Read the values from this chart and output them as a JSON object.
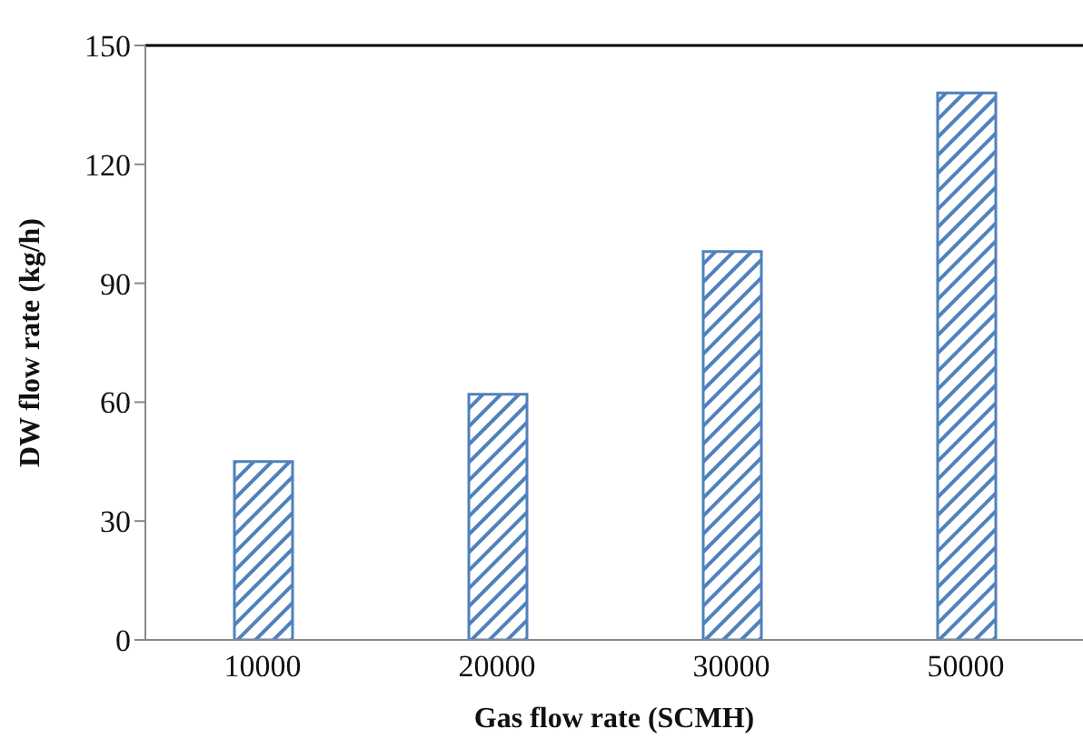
{
  "chart_data": {
    "type": "bar",
    "xlabel": "Gas flow rate (SCMH)",
    "ylabel": "DW flow rate (kg/h)",
    "categories": [
      "10000",
      "20000",
      "30000",
      "50000"
    ],
    "values": [
      45,
      62,
      98,
      138
    ],
    "color": "#4f81bd",
    "ylim": [
      0,
      150
    ],
    "yticks": [
      0,
      30,
      60,
      90,
      120,
      150
    ],
    "grid": false,
    "legend": false
  }
}
